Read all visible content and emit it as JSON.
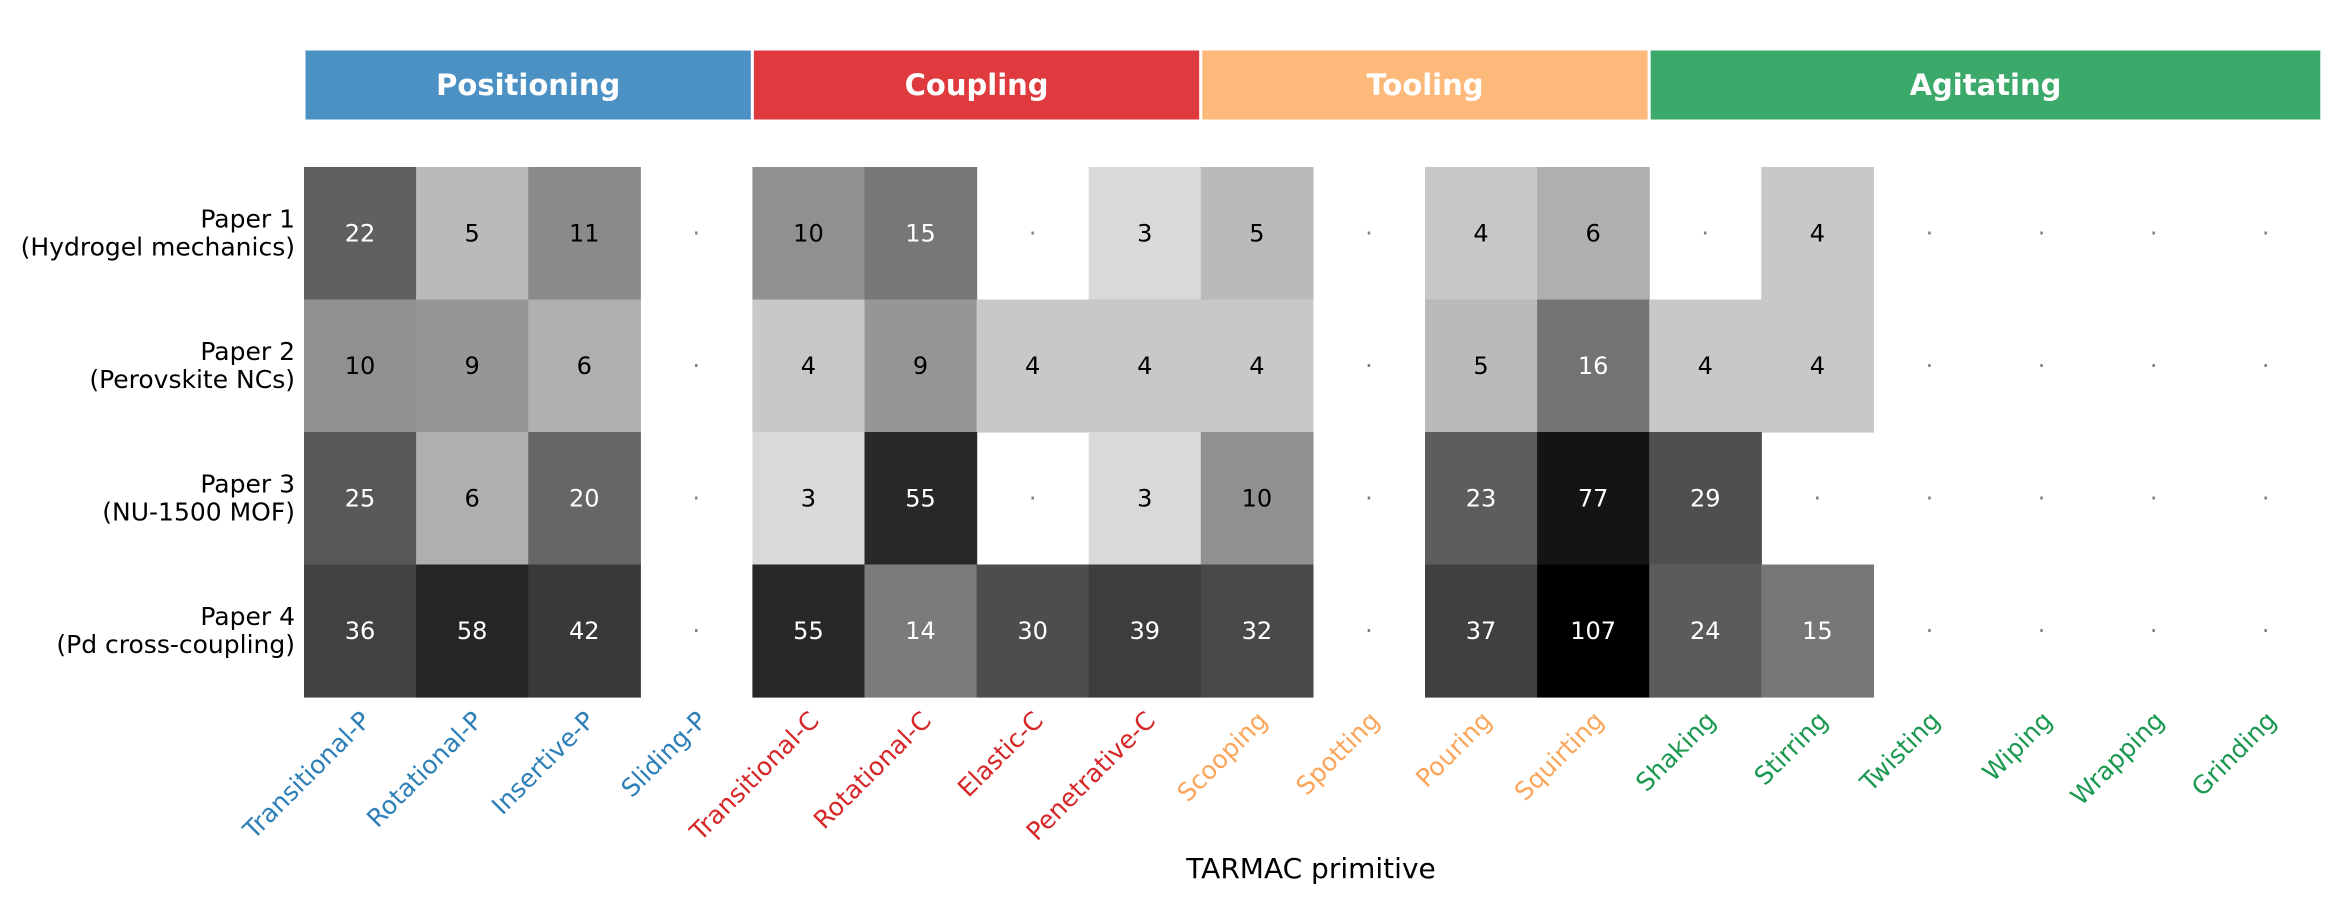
{
  "chart_data": {
    "type": "heatmap",
    "xlabel": "TARMAC primitive",
    "categories": [
      {
        "name": "Positioning",
        "color": "#4c91c4",
        "label_color": "#2d7fb8",
        "span": [
          0,
          3
        ]
      },
      {
        "name": "Coupling",
        "color": "#df3a3e",
        "label_color": "#d62728",
        "span": [
          4,
          7
        ]
      },
      {
        "name": "Tooling",
        "color": "#fdb97a",
        "label_color": "#fca55a",
        "span": [
          8,
          11
        ]
      },
      {
        "name": "Agitating",
        "color": "#3aa96a",
        "label_color": "#1a9850",
        "span": [
          12,
          17
        ]
      }
    ],
    "columns": [
      "Transitional-P",
      "Rotational-P",
      "Insertive-P",
      "Sliding-P",
      "Transitional-C",
      "Rotational-C",
      "Elastic-C",
      "Penetrative-C",
      "Scooping",
      "Spotting",
      "Pouring",
      "Squirting",
      "Shaking",
      "Stirring",
      "Twisting",
      "Wiping",
      "Wrapping",
      "Grinding"
    ],
    "rows": [
      {
        "label_line1": "Paper 1",
        "label_line2": "(Hydrogel mechanics)",
        "values": [
          22,
          5,
          11,
          null,
          10,
          15,
          null,
          3,
          5,
          null,
          4,
          6,
          null,
          4,
          null,
          null,
          null,
          null
        ]
      },
      {
        "label_line1": "Paper 2",
        "label_line2": "(Perovskite NCs)",
        "values": [
          10,
          9,
          6,
          null,
          4,
          9,
          4,
          4,
          4,
          null,
          5,
          16,
          4,
          4,
          null,
          null,
          null,
          null
        ]
      },
      {
        "label_line1": "Paper 3",
        "label_line2": "(NU-1500 MOF)",
        "values": [
          25,
          6,
          20,
          null,
          3,
          55,
          null,
          3,
          10,
          null,
          23,
          77,
          29,
          null,
          null,
          null,
          null,
          null
        ]
      },
      {
        "label_line1": "Paper 4",
        "label_line2": "(Pd cross-coupling)",
        "values": [
          36,
          58,
          42,
          null,
          55,
          14,
          30,
          39,
          32,
          null,
          37,
          107,
          24,
          15,
          null,
          null,
          null,
          null
        ]
      }
    ],
    "empty_marker": "·",
    "colormap": "greys",
    "scale": "log"
  }
}
